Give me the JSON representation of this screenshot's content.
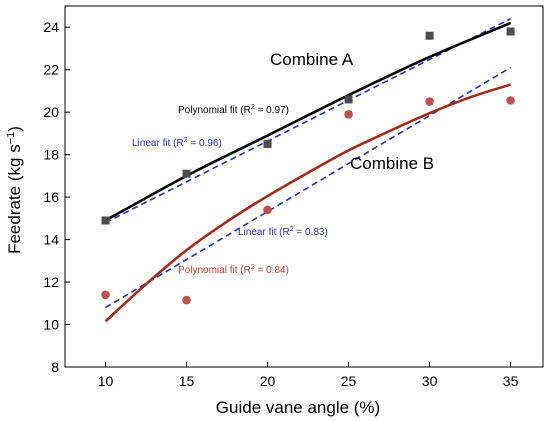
{
  "chart_data": {
    "type": "scatter",
    "title": "",
    "xlabel": "Guide vane angle (%)",
    "ylabel_main": "Feedrate (kg s",
    "ylabel_sup": "−1",
    "ylabel_end": ")",
    "xlim": [
      7.5,
      37
    ],
    "ylim": [
      8,
      25
    ],
    "xticks": [
      10,
      15,
      20,
      25,
      30,
      35
    ],
    "yticks": [
      8,
      10,
      12,
      14,
      16,
      18,
      20,
      22,
      24
    ],
    "grid": false,
    "series": [
      {
        "name": "Combine A",
        "marker": "square",
        "color": "#4d4d4d",
        "x": [
          10,
          15,
          20,
          25,
          30,
          35
        ],
        "y": [
          14.9,
          17.1,
          18.5,
          20.6,
          23.6,
          23.8
        ],
        "poly_fit": {
          "label_main": "Polynomial fit (R",
          "label_sup": "2",
          "label_end": " = 0.97)",
          "color": "#000000",
          "x": [
            10,
            15,
            20,
            25,
            30,
            35
          ],
          "y": [
            14.9,
            17.0,
            18.9,
            20.8,
            22.6,
            24.2
          ]
        },
        "linear_fit": {
          "label_main": "Linear fit (R",
          "label_sup": "2",
          "label_end": " = 0.96)",
          "color": "#1f2fbf",
          "x": [
            10,
            35
          ],
          "y": [
            14.8,
            24.4
          ]
        }
      },
      {
        "name": "Combine B",
        "marker": "circle",
        "color": "#c0504d",
        "x": [
          10,
          15,
          20,
          25,
          30,
          35
        ],
        "y": [
          11.4,
          11.15,
          15.4,
          19.9,
          20.5,
          20.55
        ],
        "poly_fit": {
          "label_main": "Polynomial fit (R",
          "label_sup": "2",
          "label_end": " = 0.84)",
          "color": "#a52a1a",
          "x": [
            10,
            12.5,
            15,
            17.5,
            20,
            22.5,
            25,
            27.5,
            30,
            32.5,
            35
          ],
          "y": [
            10.15,
            11.9,
            13.5,
            14.85,
            16.05,
            17.15,
            18.2,
            19.1,
            19.95,
            20.7,
            21.3
          ]
        },
        "linear_fit": {
          "label_main": "Linear fit (R",
          "label_sup": "2",
          "label_end": " = 0.83)",
          "color": "#1f2fbf",
          "x": [
            10,
            35
          ],
          "y": [
            10.8,
            22.1
          ]
        }
      }
    ]
  }
}
